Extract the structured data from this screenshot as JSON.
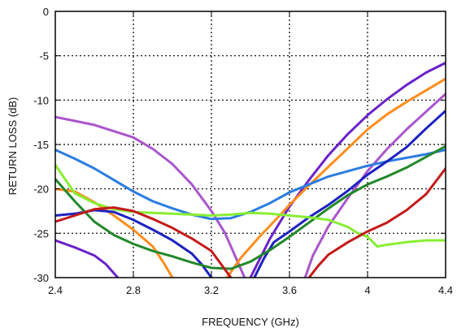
{
  "chart_data": {
    "type": "line",
    "xlabel": "FREQUENCY (GHz)",
    "ylabel": "RETURN LOSS  (dB)",
    "xlim": [
      2.4,
      4.4
    ],
    "ylim": [
      -30,
      0
    ],
    "x_ticks": [
      2.4,
      2.8,
      3.2,
      3.6,
      4.0,
      4.4
    ],
    "x_tick_labels": [
      "2.4",
      "2.8",
      "3.2",
      "3.6",
      "4",
      "4.4"
    ],
    "y_ticks": [
      0,
      -5,
      -10,
      -15,
      -20,
      -25,
      -30
    ],
    "y_tick_labels": [
      "0",
      "-5",
      "-10",
      "-15",
      "-20",
      "-25",
      "-30"
    ],
    "grid": true,
    "grid_style": "dotted",
    "series": [
      {
        "color": "#aa55cc",
        "points": [
          [
            2.4,
            -11.9
          ],
          [
            2.6,
            -12.8
          ],
          [
            2.8,
            -14.2
          ],
          [
            2.9,
            -15.5
          ],
          [
            3.0,
            -17.2
          ],
          [
            3.1,
            -19.5
          ],
          [
            3.2,
            -22.5
          ],
          [
            3.27,
            -25.0
          ],
          [
            3.33,
            -28.0
          ],
          [
            3.37,
            -30.0
          ]
        ]
      },
      {
        "color": "#aa55cc",
        "points": [
          [
            3.68,
            -30.0
          ],
          [
            3.72,
            -27.5
          ],
          [
            3.8,
            -24.2
          ],
          [
            3.9,
            -21.0
          ],
          [
            4.0,
            -18.0
          ],
          [
            4.1,
            -15.5
          ],
          [
            4.2,
            -13.3
          ],
          [
            4.3,
            -11.3
          ],
          [
            4.4,
            -9.3
          ]
        ]
      },
      {
        "color": "#6a22c8",
        "points": [
          [
            2.4,
            -25.8
          ],
          [
            2.5,
            -26.6
          ],
          [
            2.6,
            -27.5
          ],
          [
            2.66,
            -28.5
          ],
          [
            2.72,
            -30.0
          ]
        ]
      },
      {
        "color": "#6a22c8",
        "points": [
          [
            3.4,
            -30.0
          ],
          [
            3.45,
            -27.8
          ],
          [
            3.5,
            -25.6
          ],
          [
            3.6,
            -22.0
          ],
          [
            3.7,
            -19.0
          ],
          [
            3.8,
            -16.2
          ],
          [
            3.9,
            -13.8
          ],
          [
            4.0,
            -11.7
          ],
          [
            4.1,
            -9.9
          ],
          [
            4.2,
            -8.3
          ],
          [
            4.3,
            -6.9
          ],
          [
            4.4,
            -5.8
          ]
        ]
      },
      {
        "color": "#ff8c1a",
        "points": [
          [
            2.4,
            -20.0
          ],
          [
            2.5,
            -20.3
          ],
          [
            2.6,
            -21.5
          ],
          [
            2.7,
            -23.0
          ],
          [
            2.8,
            -24.6
          ],
          [
            2.9,
            -26.5
          ],
          [
            2.96,
            -28.5
          ],
          [
            3.0,
            -30.0
          ]
        ]
      },
      {
        "color": "#ff8c1a",
        "points": [
          [
            3.28,
            -30.0
          ],
          [
            3.35,
            -27.8
          ],
          [
            3.45,
            -25.3
          ],
          [
            3.55,
            -23.0
          ],
          [
            3.6,
            -21.8
          ],
          [
            3.7,
            -19.6
          ],
          [
            3.8,
            -17.5
          ],
          [
            3.9,
            -15.4
          ],
          [
            4.0,
            -13.3
          ],
          [
            4.1,
            -11.6
          ],
          [
            4.2,
            -10.2
          ],
          [
            4.3,
            -8.9
          ],
          [
            4.4,
            -7.6
          ]
        ]
      },
      {
        "color": "#2b7de0",
        "points": [
          [
            2.4,
            -15.6
          ],
          [
            2.5,
            -16.6
          ],
          [
            2.6,
            -17.7
          ],
          [
            2.7,
            -19.0
          ],
          [
            2.8,
            -20.3
          ],
          [
            2.9,
            -21.4
          ],
          [
            3.0,
            -22.2
          ],
          [
            3.1,
            -22.9
          ],
          [
            3.2,
            -23.4
          ],
          [
            3.3,
            -23.3
          ],
          [
            3.4,
            -22.6
          ],
          [
            3.5,
            -21.6
          ],
          [
            3.6,
            -20.4
          ],
          [
            3.7,
            -19.5
          ],
          [
            3.8,
            -18.6
          ],
          [
            3.9,
            -18.0
          ],
          [
            4.0,
            -17.4
          ],
          [
            4.1,
            -16.9
          ],
          [
            4.2,
            -16.5
          ],
          [
            4.3,
            -16.1
          ],
          [
            4.4,
            -15.6
          ]
        ]
      },
      {
        "color": "#1c22c0",
        "points": [
          [
            2.4,
            -23.0
          ],
          [
            2.5,
            -22.8
          ],
          [
            2.6,
            -22.4
          ],
          [
            2.7,
            -22.6
          ],
          [
            2.8,
            -23.5
          ],
          [
            2.9,
            -24.6
          ],
          [
            3.0,
            -25.8
          ],
          [
            3.1,
            -27.3
          ],
          [
            3.15,
            -28.5
          ],
          [
            3.2,
            -30.0
          ]
        ]
      },
      {
        "color": "#1c22c0",
        "points": [
          [
            3.42,
            -30.0
          ],
          [
            3.47,
            -27.8
          ],
          [
            3.52,
            -26.0
          ],
          [
            3.6,
            -24.8
          ],
          [
            3.7,
            -23.2
          ],
          [
            3.8,
            -21.8
          ],
          [
            3.9,
            -20.2
          ],
          [
            4.0,
            -18.4
          ],
          [
            4.1,
            -16.9
          ],
          [
            4.2,
            -15.3
          ],
          [
            4.3,
            -13.2
          ],
          [
            4.4,
            -11.2
          ]
        ]
      },
      {
        "color": "#22882a",
        "points": [
          [
            2.4,
            -18.9
          ],
          [
            2.5,
            -21.4
          ],
          [
            2.6,
            -23.7
          ],
          [
            2.7,
            -25.2
          ],
          [
            2.8,
            -26.2
          ],
          [
            2.9,
            -27.0
          ],
          [
            3.0,
            -27.6
          ],
          [
            3.1,
            -28.3
          ],
          [
            3.2,
            -28.9
          ],
          [
            3.3,
            -29.0
          ],
          [
            3.4,
            -28.2
          ],
          [
            3.5,
            -26.9
          ],
          [
            3.6,
            -25.4
          ],
          [
            3.7,
            -23.8
          ],
          [
            3.8,
            -22.2
          ],
          [
            3.9,
            -20.7
          ],
          [
            4.0,
            -19.5
          ],
          [
            4.1,
            -18.6
          ],
          [
            4.2,
            -17.6
          ],
          [
            4.3,
            -16.4
          ],
          [
            4.4,
            -15.2
          ]
        ]
      },
      {
        "color": "#88ee33",
        "points": [
          [
            2.4,
            -17.3
          ],
          [
            2.5,
            -20.5
          ],
          [
            2.6,
            -21.6
          ],
          [
            2.7,
            -22.3
          ],
          [
            2.8,
            -22.6
          ],
          [
            2.9,
            -22.7
          ],
          [
            3.0,
            -22.8
          ],
          [
            3.1,
            -22.9
          ],
          [
            3.2,
            -23.0
          ],
          [
            3.3,
            -22.9
          ],
          [
            3.4,
            -22.7
          ],
          [
            3.5,
            -22.8
          ],
          [
            3.6,
            -23.0
          ],
          [
            3.7,
            -23.2
          ],
          [
            3.8,
            -23.5
          ],
          [
            3.9,
            -24.3
          ],
          [
            3.95,
            -25.0
          ],
          [
            4.0,
            -25.4
          ],
          [
            4.05,
            -26.5
          ],
          [
            4.1,
            -26.3
          ],
          [
            4.2,
            -26.0
          ],
          [
            4.3,
            -25.8
          ],
          [
            4.4,
            -25.8
          ]
        ]
      },
      {
        "color": "#c41a1a",
        "points": [
          [
            2.4,
            -23.7
          ],
          [
            2.5,
            -23.0
          ],
          [
            2.6,
            -22.3
          ],
          [
            2.7,
            -22.1
          ],
          [
            2.8,
            -22.5
          ],
          [
            2.9,
            -23.4
          ],
          [
            3.0,
            -24.4
          ],
          [
            3.1,
            -25.6
          ],
          [
            3.2,
            -27.0
          ],
          [
            3.25,
            -28.5
          ],
          [
            3.3,
            -30.0
          ]
        ]
      },
      {
        "color": "#c41a1a",
        "points": [
          [
            3.7,
            -30.0
          ],
          [
            3.75,
            -28.6
          ],
          [
            3.8,
            -27.4
          ],
          [
            3.9,
            -26.0
          ],
          [
            4.0,
            -24.8
          ],
          [
            4.1,
            -23.8
          ],
          [
            4.2,
            -22.4
          ],
          [
            4.3,
            -20.6
          ],
          [
            4.4,
            -17.7
          ]
        ]
      }
    ]
  }
}
